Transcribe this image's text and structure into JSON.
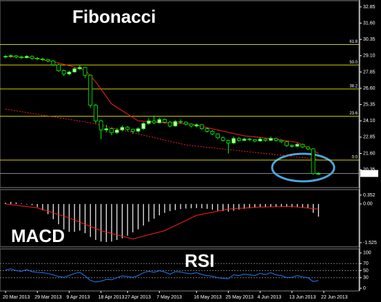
{
  "chart_data": [
    {
      "type": "candlestick",
      "title": "Fibonacci",
      "open": [
        29.0,
        29.05,
        29.1,
        29.0,
        28.95,
        29.05,
        28.9,
        28.85,
        28.8,
        28.7,
        28.4,
        27.95,
        27.7,
        27.85,
        28.1,
        28.2,
        27.6,
        25.3,
        24.1,
        23.4,
        23.5,
        23.2,
        23.4,
        23.6,
        23.45,
        23.3,
        23.5,
        23.9,
        24.1,
        23.95,
        24.2,
        24.0,
        23.7,
        24.05,
        24.0,
        23.85,
        23.7,
        23.8,
        23.5,
        23.3,
        23.1,
        22.8,
        22.6,
        22.4,
        22.75,
        22.6,
        22.7,
        22.65,
        22.55,
        22.7,
        22.6,
        22.75,
        22.6,
        22.5,
        22.2,
        22.15,
        22.3,
        22.1,
        21.95,
        20.05
      ],
      "high": [
        29.15,
        29.2,
        29.15,
        29.1,
        29.15,
        29.1,
        29.0,
        28.95,
        28.85,
        28.75,
        28.5,
        28.05,
        27.95,
        28.2,
        28.35,
        28.25,
        27.65,
        25.4,
        24.2,
        23.8,
        23.6,
        23.55,
        23.75,
        23.7,
        23.5,
        23.6,
        24.0,
        24.3,
        24.5,
        24.35,
        24.3,
        24.1,
        24.15,
        24.2,
        24.05,
        23.9,
        23.9,
        23.85,
        23.6,
        23.4,
        23.15,
        22.9,
        22.65,
        22.9,
        22.85,
        22.8,
        22.8,
        22.7,
        22.85,
        22.75,
        22.9,
        22.8,
        22.65,
        22.55,
        22.3,
        22.4,
        22.35,
        22.15,
        22.0,
        20.15
      ],
      "low": [
        28.9,
        28.95,
        28.9,
        28.85,
        28.9,
        28.8,
        28.75,
        28.7,
        28.6,
        28.3,
        27.85,
        27.55,
        27.6,
        27.8,
        28.0,
        27.4,
        25.1,
        23.9,
        22.7,
        23.2,
        23.0,
        23.1,
        23.3,
        23.3,
        23.1,
        23.2,
        23.4,
        23.8,
        23.85,
        23.9,
        23.9,
        23.6,
        23.65,
        23.9,
        23.75,
        23.6,
        23.6,
        23.4,
        23.2,
        23.0,
        22.7,
        22.5,
        21.6,
        22.3,
        22.5,
        22.55,
        22.55,
        22.45,
        22.5,
        22.5,
        22.55,
        22.5,
        22.4,
        22.1,
        22.05,
        22.1,
        22.0,
        21.85,
        19.95,
        19.95
      ],
      "close": [
        29.05,
        29.1,
        29.0,
        28.95,
        29.05,
        28.9,
        28.85,
        28.8,
        28.7,
        28.4,
        27.95,
        27.7,
        27.85,
        28.1,
        28.2,
        27.6,
        25.3,
        24.1,
        23.4,
        23.5,
        23.2,
        23.4,
        23.6,
        23.45,
        23.3,
        23.5,
        23.9,
        24.1,
        23.95,
        24.2,
        24.0,
        23.7,
        24.05,
        24.0,
        23.85,
        23.7,
        23.8,
        23.5,
        23.3,
        23.1,
        22.8,
        22.6,
        22.4,
        22.75,
        22.6,
        22.7,
        22.65,
        22.55,
        22.7,
        22.6,
        22.75,
        22.6,
        22.5,
        22.2,
        22.15,
        22.3,
        22.1,
        21.95,
        20.05,
        20.06
      ],
      "bull_color": "#c8ffb0",
      "bear_color": "#000000",
      "wick_color": "#00ff00",
      "moving_averages": [
        {
          "color": "#ff2020",
          "style": "solid",
          "x": [
            0,
            5,
            10,
            15,
            17,
            20,
            25,
            30,
            35,
            40,
            45,
            50,
            55,
            59
          ],
          "values": [
            29.05,
            28.95,
            28.55,
            28.0,
            27.1,
            25.4,
            24.1,
            23.95,
            23.85,
            23.4,
            22.95,
            22.75,
            22.45,
            21.6
          ]
        },
        {
          "color": "#ff2020",
          "style": "dotted",
          "x": [
            0,
            16,
            34,
            59
          ],
          "values": [
            25.0,
            23.95,
            22.25,
            21.15
          ]
        }
      ],
      "fib_color": "#d4d400",
      "fib_levels": [
        {
          "label": "61.8",
          "price": 29.96
        },
        {
          "label": "50.0",
          "price": 28.39
        },
        {
          "label": "38.2",
          "price": 26.55
        },
        {
          "label": "23.6",
          "price": 24.45
        },
        {
          "label": "0.0",
          "price": 21.09
        }
      ],
      "last_price": 20.06,
      "ylim": [
        18.98,
        33.27
      ],
      "yticks": [
        32.85,
        {
          "value": 31.6,
          "label": "31.60"
        },
        30.35,
        {
          "value": 29.1,
          "label": "29.10"
        },
        27.85,
        {
          "value": 26.6,
          "label": "26.60"
        },
        25.35,
        {
          "value": 24.1,
          "label": "24.10"
        },
        22.85,
        {
          "value": 21.6,
          "label": "21.60"
        },
        20.35
      ]
    },
    {
      "type": "macd",
      "title": "MACD",
      "color": "#ffffff",
      "values": [
        0.05,
        0.08,
        0.06,
        0.02,
        -0.02,
        -0.05,
        -0.12,
        -0.25,
        -0.4,
        -0.6,
        -0.8,
        -1.0,
        -1.1,
        -1.1,
        -1.05,
        -1.15,
        -1.3,
        -1.42,
        -1.48,
        -1.5,
        -1.48,
        -1.42,
        -1.35,
        -1.25,
        -1.12,
        -1.0,
        -0.85,
        -0.7,
        -0.58,
        -0.45,
        -0.35,
        -0.28,
        -0.24,
        -0.2,
        -0.18,
        -0.17,
        -0.16,
        -0.17,
        -0.19,
        -0.22,
        -0.26,
        -0.28,
        -0.3,
        -0.26,
        -0.22,
        -0.19,
        -0.17,
        -0.15,
        -0.13,
        -0.12,
        -0.11,
        -0.1,
        -0.1,
        -0.12,
        -0.13,
        -0.12,
        -0.13,
        -0.16,
        -0.35,
        -0.5
      ],
      "signal": {
        "color": "#ff2020",
        "x": [
          0,
          6,
          12,
          18,
          24,
          30,
          36,
          42,
          48,
          54,
          59
        ],
        "values": [
          0.0,
          -0.15,
          -0.55,
          -1.05,
          -1.38,
          -1.05,
          -0.45,
          -0.2,
          -0.12,
          -0.1,
          -0.2
        ]
      },
      "ylim": [
        -1.69,
        0.54
      ],
      "yticks": [
        0.352,
        {
          "value": 0,
          "label": "0.00"
        },
        -1.525
      ]
    },
    {
      "type": "line",
      "title": "RSI",
      "color": "#1e7fff",
      "grid": true,
      "values": [
        52,
        55,
        50,
        48,
        53,
        47,
        45,
        44,
        42,
        38,
        33,
        31,
        36,
        42,
        45,
        35,
        22,
        18,
        20,
        25,
        24,
        30,
        35,
        33,
        31,
        36,
        44,
        48,
        45,
        50,
        46,
        40,
        47,
        46,
        43,
        41,
        44,
        39,
        36,
        34,
        30,
        28,
        27,
        38,
        36,
        40,
        38,
        36,
        42,
        39,
        44,
        38,
        36,
        30,
        31,
        36,
        32,
        30,
        19,
        22
      ],
      "ylim": [
        -7.7,
        111.5
      ],
      "yticks": [
        100,
        70,
        50,
        30,
        0
      ],
      "xticks": [
        {
          "value": 0,
          "label": "20 Mar 2013"
        },
        {
          "value": 6,
          "label": "29 Mar 2013"
        },
        {
          "value": 12,
          "label": "9 Apr 2013"
        },
        {
          "value": 18,
          "label": "18 Apr 2013"
        },
        {
          "value": 23,
          "label": "27 Apr 2013"
        },
        {
          "value": 29,
          "label": "7 May 2013"
        },
        {
          "value": 36,
          "label": "16 May 2013"
        },
        {
          "value": 42,
          "label": "25 May 2013"
        },
        {
          "value": 48,
          "label": "4 Jun 2013"
        },
        {
          "value": 54,
          "label": "13 Jun 2013"
        },
        {
          "value": 60,
          "label": "22 Jun 2013"
        }
      ]
    }
  ]
}
